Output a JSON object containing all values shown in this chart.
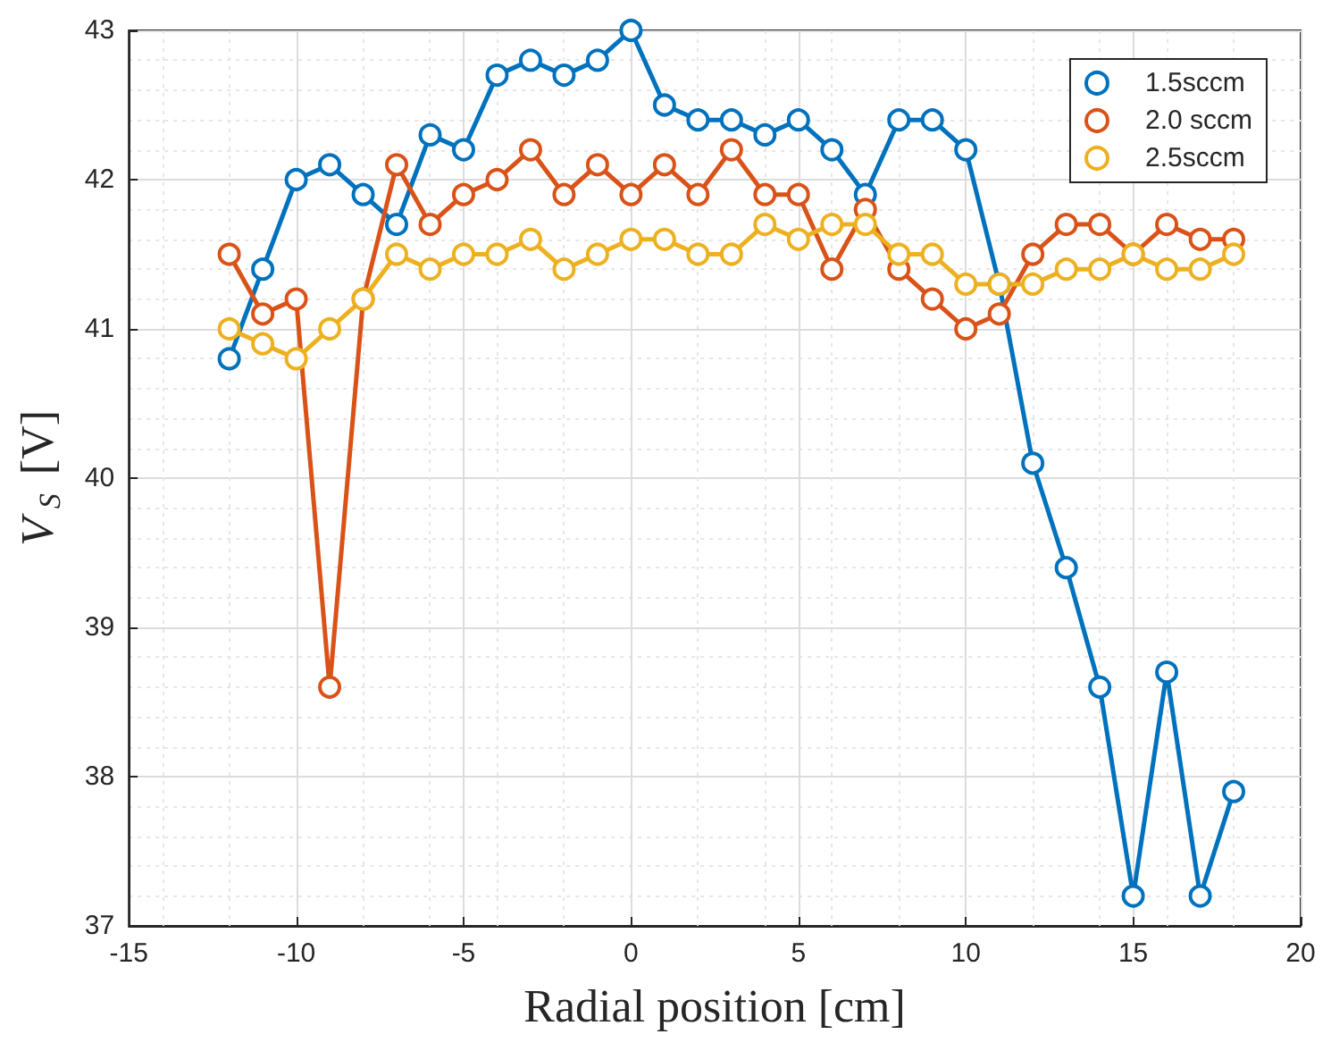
{
  "chart_data": {
    "type": "line",
    "xlabel": "Radial position [cm]",
    "ylabel": "V$_{S}$ [V]",
    "x": [
      -12,
      -11,
      -10,
      -9,
      -8,
      -7,
      -6,
      -5,
      -4,
      -3,
      -2,
      -1,
      0,
      1,
      2,
      3,
      4,
      5,
      6,
      7,
      8,
      9,
      10,
      11,
      12,
      13,
      14,
      15,
      16,
      17,
      18
    ],
    "series": [
      {
        "name": "1.5sccm",
        "color": "#0072bd",
        "values": [
          40.8,
          41.4,
          42.0,
          42.1,
          41.9,
          41.7,
          42.3,
          42.2,
          42.7,
          42.8,
          42.7,
          42.8,
          43.0,
          42.5,
          42.4,
          42.4,
          42.3,
          42.4,
          42.2,
          41.9,
          42.4,
          42.4,
          42.2,
          41.3,
          40.1,
          39.4,
          38.6,
          37.2,
          38.7,
          37.2,
          37.9
        ]
      },
      {
        "name": "2.0 sccm",
        "color": "#d95319",
        "values": [
          41.5,
          41.1,
          41.2,
          38.6,
          41.2,
          42.1,
          41.7,
          41.9,
          42.0,
          42.2,
          41.9,
          42.1,
          41.9,
          42.1,
          41.9,
          42.2,
          41.9,
          41.9,
          41.4,
          41.8,
          41.4,
          41.2,
          41.0,
          41.1,
          41.5,
          41.7,
          41.7,
          41.5,
          41.7,
          41.6,
          41.6
        ]
      },
      {
        "name": "2.5sccm",
        "color": "#edb120",
        "values": [
          41.0,
          40.9,
          40.8,
          41.0,
          41.2,
          41.5,
          41.4,
          41.5,
          41.5,
          41.6,
          41.4,
          41.5,
          41.6,
          41.6,
          41.5,
          41.5,
          41.7,
          41.6,
          41.7,
          41.7,
          41.5,
          41.5,
          41.3,
          41.3,
          41.3,
          41.4,
          41.4,
          41.5,
          41.4,
          41.4,
          41.5
        ]
      }
    ],
    "xlim": [
      -15,
      20
    ],
    "xticks": [
      -15,
      -10,
      -5,
      0,
      5,
      10,
      15,
      20
    ],
    "ylim": [
      37,
      43
    ],
    "yticks": [
      37,
      38,
      39,
      40,
      41,
      42,
      43
    ],
    "grid": true,
    "legend": "top right",
    "marker": "circle",
    "line_style": "solid"
  }
}
